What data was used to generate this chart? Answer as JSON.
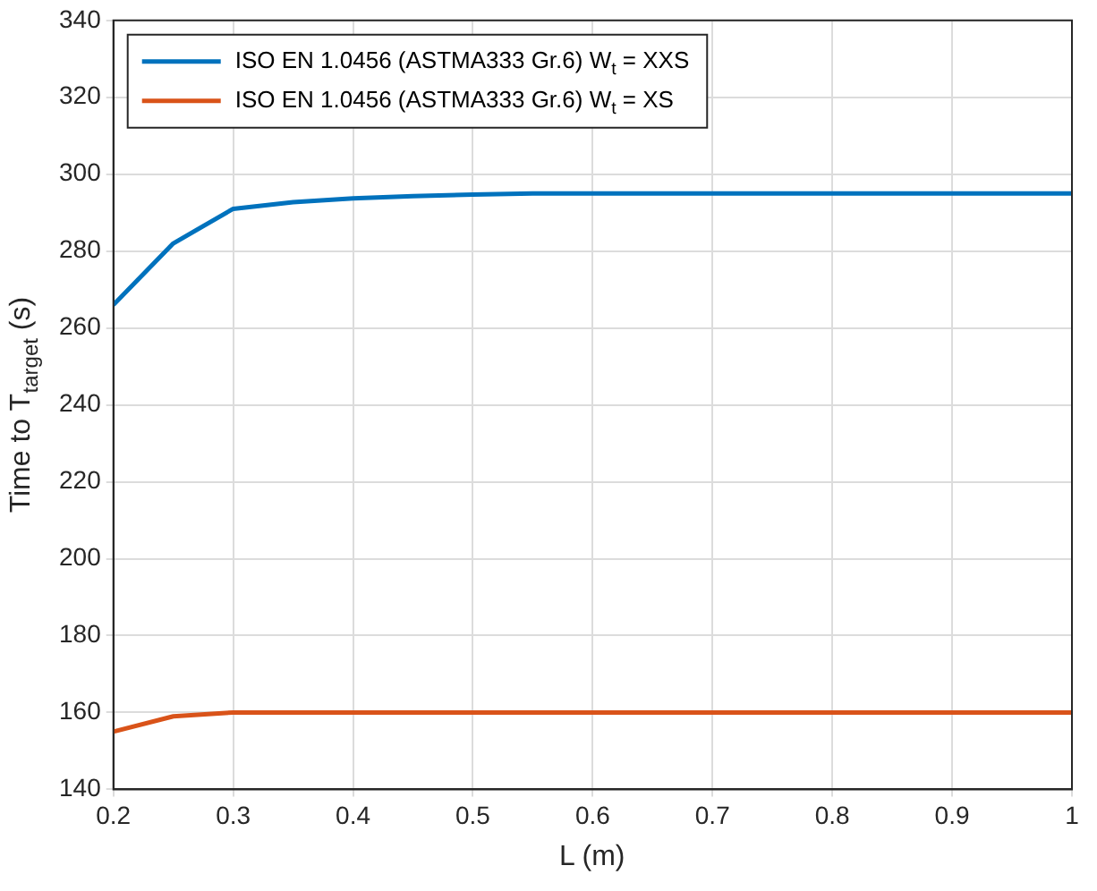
{
  "chart_data": {
    "type": "line",
    "xlabel": "L (m)",
    "ylabel": "Time to T$_{target}$ (s)",
    "xlim": [
      0.2,
      1
    ],
    "xticks": [
      0.2,
      0.3,
      0.4,
      0.5,
      0.6,
      0.7,
      0.8,
      0.9,
      1
    ],
    "ylim": [
      140,
      340
    ],
    "yticks": [
      140,
      160,
      180,
      200,
      220,
      240,
      260,
      280,
      300,
      320,
      340
    ],
    "grid": true,
    "legend": "top left",
    "marker": "none",
    "line_style": "solid",
    "x": [
      0.2,
      0.25,
      0.3,
      0.35,
      0.4,
      0.45,
      0.5,
      0.55,
      0.6,
      0.65,
      0.7,
      0.75,
      0.8,
      0.85,
      0.9,
      0.95,
      1
    ],
    "series": [
      {
        "name": "ISO EN 1.0456 (ASTMA333 Gr.6) W$_{t}$ = XXS",
        "color": "#0072bd",
        "values": [
          266,
          282,
          291,
          292.7,
          293.7,
          294.3,
          294.7,
          295,
          295,
          295,
          295,
          295,
          295,
          295,
          295,
          295,
          295
        ]
      },
      {
        "name": "ISO EN 1.0456 (ASTMA333 Gr.6) W$_{t}$ = XS",
        "color": "#d95319",
        "values": [
          155,
          159,
          160,
          160,
          160,
          160,
          160,
          160,
          160,
          160,
          160,
          160,
          160,
          160,
          160,
          160,
          160
        ]
      }
    ]
  }
}
